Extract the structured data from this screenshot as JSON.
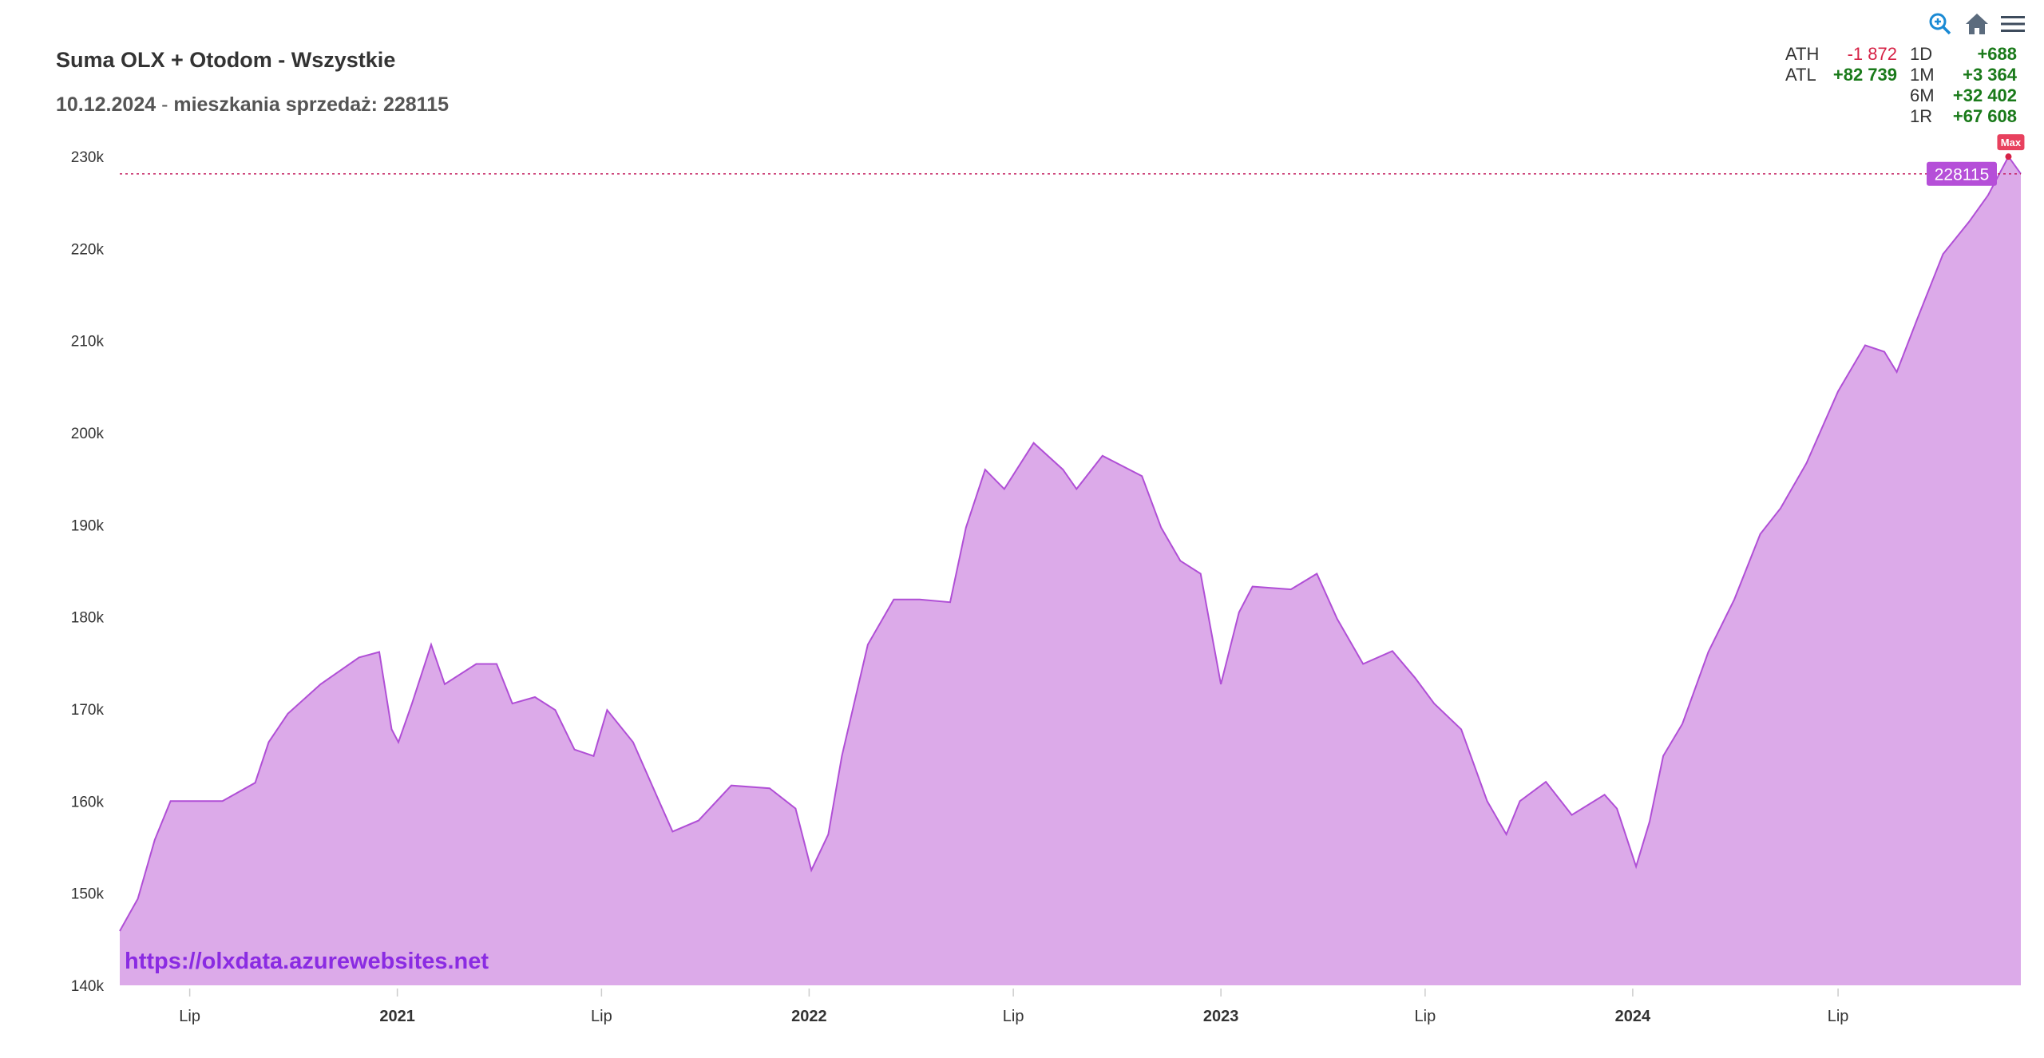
{
  "title": "Suma OLX + Otodom - Wszystkie",
  "subtitle": {
    "date": "10.12.2024",
    "sep": " - ",
    "text": "mieszkania sprzedaż: 228115"
  },
  "toolbar": {
    "icons": [
      "zoom-in-icon",
      "home-icon",
      "menu-icon"
    ]
  },
  "stats": {
    "ath": {
      "label": "ATH",
      "value": "-1 872"
    },
    "atl": {
      "label": "ATL",
      "value": "+82 739"
    },
    "d1": {
      "label": "1D",
      "value": "+688"
    },
    "m1": {
      "label": "1M",
      "value": "+3 364"
    },
    "m6": {
      "label": "6M",
      "value": "+32 402"
    },
    "r1": {
      "label": "1R",
      "value": "+67 608"
    }
  },
  "watermark": "https://olxdata.azurewebsites.net",
  "colors": {
    "fill": "#dcaae9",
    "line": "#b04fd6",
    "current_label": "#b54fd8",
    "max_label": "#e8415e",
    "dashed": "#c2185b"
  },
  "chart_data": {
    "type": "area",
    "title": "Suma OLX + Otodom - Wszystkie",
    "ylim": [
      140000,
      230000
    ],
    "xlim": [
      "2020-04-30",
      "2024-12-10"
    ],
    "yticks": [
      140000,
      150000,
      160000,
      170000,
      180000,
      190000,
      200000,
      210000,
      220000,
      230000
    ],
    "ytick_labels": [
      "140k",
      "150k",
      "160k",
      "170k",
      "180k",
      "190k",
      "200k",
      "210k",
      "220k",
      "230k"
    ],
    "xticks": [
      {
        "date": "2020-07-01",
        "label": "Lip",
        "major": false
      },
      {
        "date": "2021-01-01",
        "label": "2021",
        "major": true
      },
      {
        "date": "2021-07-01",
        "label": "Lip",
        "major": false
      },
      {
        "date": "2022-01-01",
        "label": "2022",
        "major": true
      },
      {
        "date": "2022-07-01",
        "label": "Lip",
        "major": false
      },
      {
        "date": "2023-01-01",
        "label": "2023",
        "major": true
      },
      {
        "date": "2023-07-01",
        "label": "Lip",
        "major": false
      },
      {
        "date": "2024-01-01",
        "label": "2024",
        "major": true
      },
      {
        "date": "2024-07-01",
        "label": "Lip",
        "major": false
      }
    ],
    "current": {
      "value": 228115,
      "label": "228115"
    },
    "max": {
      "date": "2024-11-29",
      "value": 229987,
      "label": "Max"
    },
    "grid": false,
    "legend": "none",
    "x": [
      "2020-04-30",
      "2020-05-16",
      "2020-05-31",
      "2020-06-14",
      "2020-07-30",
      "2020-08-28",
      "2020-09-09",
      "2020-09-26",
      "2020-10-25",
      "2020-11-28",
      "2020-12-16",
      "2020-12-27",
      "2021-01-02",
      "2021-01-14",
      "2021-01-31",
      "2021-02-12",
      "2021-03-12",
      "2021-03-30",
      "2021-04-13",
      "2021-05-03",
      "2021-05-21",
      "2021-06-07",
      "2021-06-24",
      "2021-07-06",
      "2021-07-29",
      "2021-08-21",
      "2021-09-02",
      "2021-09-25",
      "2021-10-24",
      "2021-11-27",
      "2021-12-20",
      "2022-01-03",
      "2022-01-18",
      "2022-01-30",
      "2022-02-22",
      "2022-03-17",
      "2022-04-09",
      "2022-05-06",
      "2022-05-20",
      "2022-06-06",
      "2022-06-23",
      "2022-07-19",
      "2022-08-14",
      "2022-08-26",
      "2022-09-18",
      "2022-10-23",
      "2022-11-09",
      "2022-11-26",
      "2022-12-14",
      "2023-01-01",
      "2023-01-17",
      "2023-01-29",
      "2023-03-04",
      "2023-03-27",
      "2023-04-14",
      "2023-05-07",
      "2023-06-02",
      "2023-06-22",
      "2023-07-09",
      "2023-08-02",
      "2023-08-25",
      "2023-09-11",
      "2023-09-23",
      "2023-10-16",
      "2023-11-08",
      "2023-12-07",
      "2023-12-18",
      "2024-01-04",
      "2024-01-16",
      "2024-01-28",
      "2024-02-14",
      "2024-03-08",
      "2024-03-31",
      "2024-04-23",
      "2024-05-11",
      "2024-06-03",
      "2024-07-01",
      "2024-07-25",
      "2024-08-11",
      "2024-08-22",
      "2024-09-09",
      "2024-10-02",
      "2024-10-25",
      "2024-11-11",
      "2024-11-29",
      "2024-12-10"
    ],
    "values": [
      145900,
      149400,
      155800,
      160000,
      160000,
      162000,
      166400,
      169500,
      172700,
      175600,
      176200,
      167800,
      166400,
      170600,
      177000,
      172700,
      174900,
      174900,
      170600,
      171300,
      169900,
      165600,
      164900,
      169900,
      166400,
      160000,
      156700,
      157900,
      161700,
      161400,
      159200,
      152500,
      156400,
      164900,
      177000,
      181900,
      181900,
      181600,
      189700,
      196000,
      193900,
      198900,
      196000,
      193900,
      197500,
      195300,
      189700,
      186100,
      184700,
      172700,
      180500,
      183300,
      183000,
      184700,
      179800,
      174900,
      176300,
      173400,
      170600,
      167800,
      160000,
      156400,
      160000,
      162100,
      158500,
      160700,
      159200,
      152900,
      157800,
      164900,
      168400,
      176200,
      181900,
      189000,
      191800,
      196700,
      204500,
      209500,
      208800,
      206600,
      212300,
      219400,
      222900,
      225800,
      229987,
      228115
    ]
  }
}
